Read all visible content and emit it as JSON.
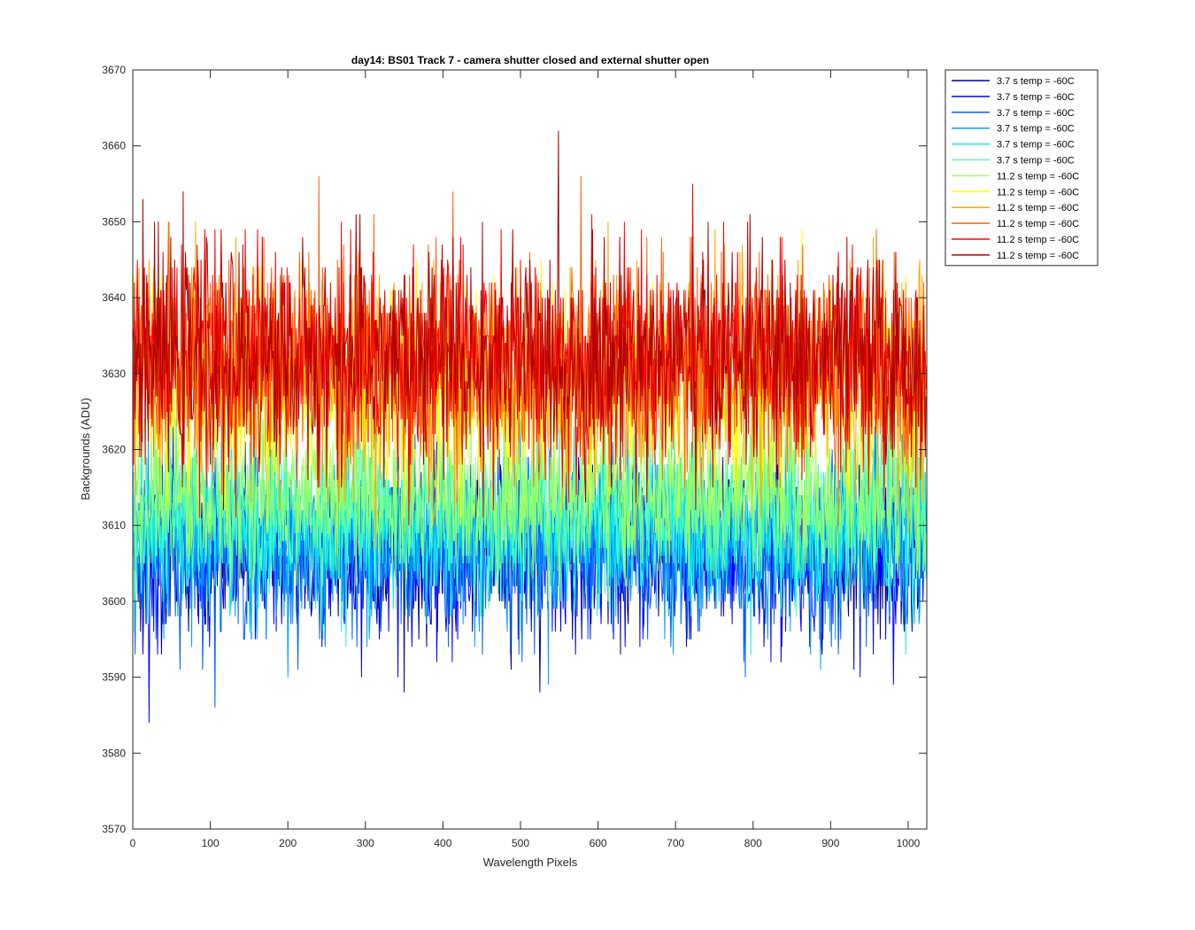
{
  "chart_data": {
    "type": "line",
    "title": "day14: BS01  Track 7 - camera shutter closed and external shutter open",
    "xlabel": "Wavelength Pixels",
    "ylabel": "Backgrounds (ADU)",
    "xlim": [
      0,
      1024
    ],
    "ylim": [
      3570,
      3670
    ],
    "xticks": [
      0,
      100,
      200,
      300,
      400,
      500,
      600,
      700,
      800,
      900,
      1000
    ],
    "yticks": [
      3570,
      3580,
      3590,
      3600,
      3610,
      3620,
      3630,
      3640,
      3650,
      3660,
      3670
    ],
    "grid": false,
    "legend_position": "outside-top-right",
    "x_points": 1024,
    "series": [
      {
        "name": "3.7 s temp = -60C",
        "color": "#00008f",
        "mean": 3607,
        "std": 5.5
      },
      {
        "name": "3.7 s temp = -60C",
        "color": "#0000ff",
        "mean": 3606,
        "std": 5.5
      },
      {
        "name": "3.7 s temp = -60C",
        "color": "#0060ff",
        "mean": 3607,
        "std": 5.5
      },
      {
        "name": "3.7 s temp = -60C",
        "color": "#00a0ff",
        "mean": 3608,
        "std": 5.5
      },
      {
        "name": "3.7 s temp = -60C",
        "color": "#10f0f0",
        "mean": 3610,
        "std": 5.5
      },
      {
        "name": "3.7 s temp = -60C",
        "color": "#50ffb0",
        "mean": 3612,
        "std": 5.0
      },
      {
        "name": "11.2 s temp = -60C",
        "color": "#a0ff60",
        "mean": 3614,
        "std": 5.0
      },
      {
        "name": "11.2 s temp = -60C",
        "color": "#ffff00",
        "mean": 3628,
        "std": 7.0
      },
      {
        "name": "11.2 s temp = -60C",
        "color": "#ffa500",
        "mean": 3630,
        "std": 7.0
      },
      {
        "name": "11.2 s temp = -60C",
        "color": "#ff6010",
        "mean": 3631,
        "std": 7.0
      },
      {
        "name": "11.2 s temp = -60C",
        "color": "#ff0000",
        "mean": 3632,
        "std": 7.0
      },
      {
        "name": "11.2 s temp = -60C",
        "color": "#b00000",
        "mean": 3632,
        "std": 7.0
      }
    ]
  }
}
